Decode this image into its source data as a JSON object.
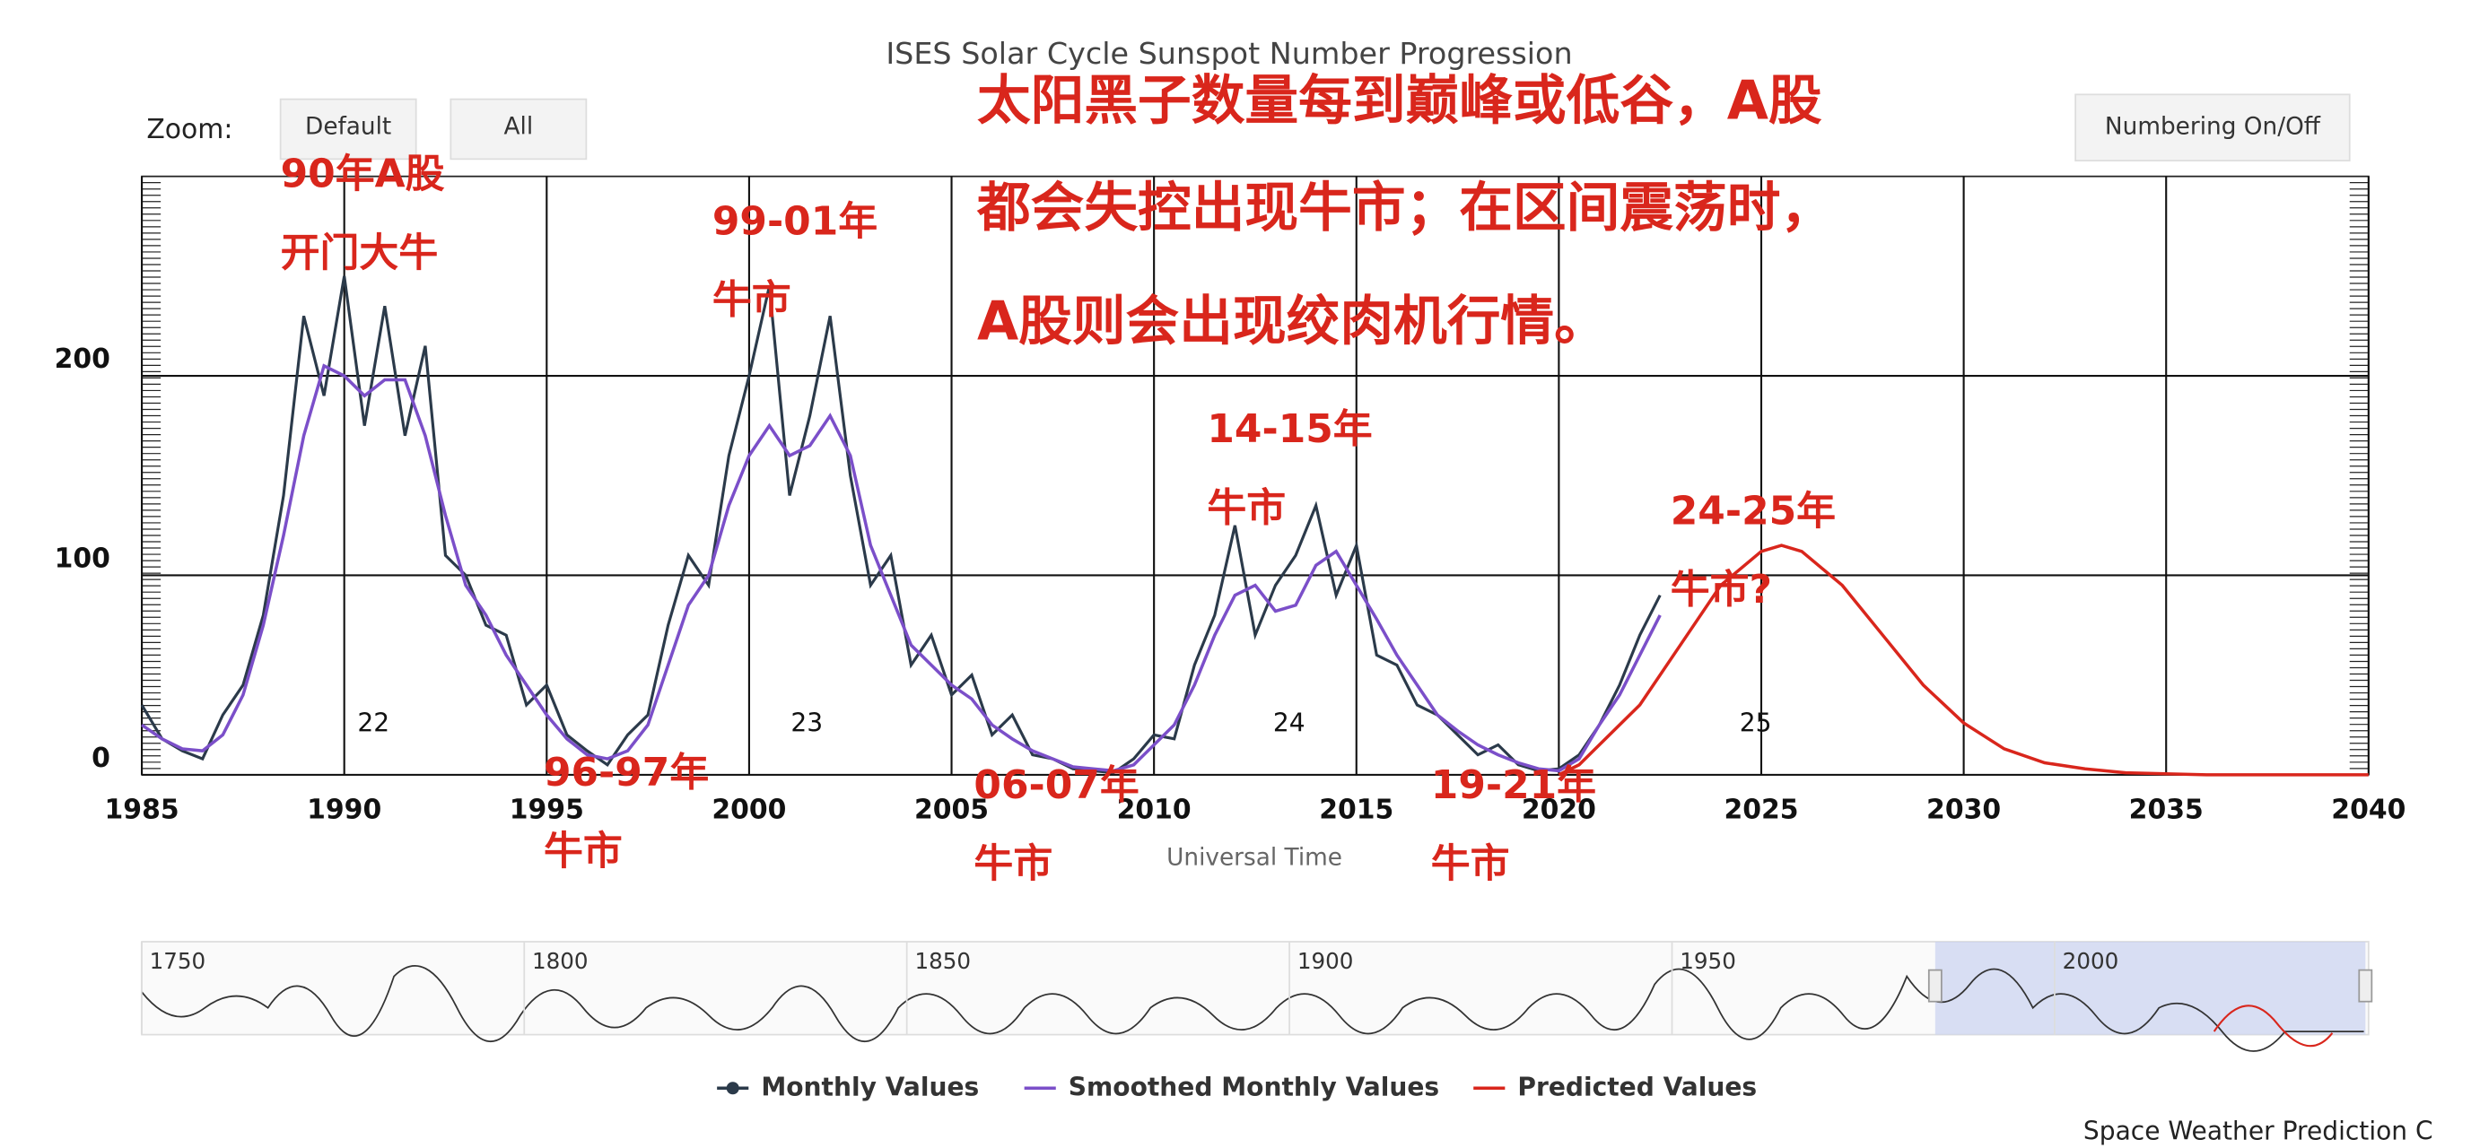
{
  "chart_data": {
    "type": "line",
    "title": "ISES Solar Cycle Sunspot Number Progression",
    "x_label": "Universal Time",
    "zoom_label": "Zoom:",
    "buttons": [
      "Default",
      "All",
      "Numbering On/Off"
    ],
    "credit": "Space Weather Prediction C",
    "xlim": [
      1985,
      2040
    ],
    "xticks": [
      1985,
      1990,
      1995,
      2000,
      2005,
      2010,
      2015,
      2020,
      2025,
      2030,
      2035,
      2040
    ],
    "ylim": [
      0,
      300
    ],
    "yticks": [
      0,
      100,
      200
    ],
    "grid": true,
    "cycle_labels": [
      "22",
      "23",
      "24",
      "25"
    ],
    "x": [
      1985,
      1985.5,
      1986,
      1986.5,
      1987,
      1987.5,
      1988,
      1988.5,
      1989,
      1989.5,
      1990,
      1990.5,
      1991,
      1991.5,
      1992,
      1992.5,
      1993,
      1993.5,
      1994,
      1994.5,
      1995,
      1995.5,
      1996,
      1996.5,
      1997,
      1997.5,
      1998,
      1998.5,
      1999,
      1999.5,
      2000,
      2000.5,
      2001,
      2001.5,
      2002,
      2002.5,
      2003,
      2003.5,
      2004,
      2004.5,
      2005,
      2005.5,
      2006,
      2006.5,
      2007,
      2007.5,
      2008,
      2008.5,
      2009,
      2009.5,
      2010,
      2010.5,
      2011,
      2011.5,
      2012,
      2012.5,
      2013,
      2013.5,
      2014,
      2014.5,
      2015,
      2015.5,
      2016,
      2016.5,
      2017,
      2017.5,
      2018,
      2018.5,
      2019,
      2019.5,
      2020,
      2020.5,
      2021,
      2021.5,
      2022,
      2022.5
    ],
    "series": [
      {
        "name": "Monthly Values",
        "color": "#2b3a4a",
        "values": [
          35,
          18,
          12,
          8,
          30,
          45,
          80,
          140,
          230,
          190,
          250,
          175,
          235,
          170,
          215,
          110,
          100,
          75,
          70,
          35,
          45,
          20,
          12,
          5,
          20,
          30,
          75,
          110,
          95,
          160,
          200,
          245,
          140,
          180,
          230,
          150,
          95,
          110,
          55,
          70,
          40,
          50,
          20,
          30,
          10,
          8,
          3,
          2,
          1,
          8,
          20,
          18,
          55,
          80,
          125,
          70,
          95,
          110,
          135,
          90,
          115,
          60,
          55,
          35,
          30,
          20,
          10,
          15,
          5,
          2,
          3,
          10,
          25,
          45,
          70,
          90
        ]
      },
      {
        "name": "Smoothed Monthly Values",
        "color": "#7b4fc9",
        "values": [
          25,
          18,
          13,
          12,
          20,
          40,
          75,
          120,
          170,
          205,
          200,
          190,
          198,
          198,
          170,
          130,
          95,
          80,
          60,
          45,
          30,
          18,
          10,
          8,
          12,
          25,
          55,
          85,
          100,
          135,
          160,
          175,
          160,
          165,
          180,
          160,
          115,
          90,
          65,
          55,
          45,
          38,
          25,
          18,
          12,
          8,
          4,
          3,
          2,
          5,
          15,
          25,
          45,
          70,
          90,
          95,
          82,
          85,
          105,
          112,
          95,
          78,
          60,
          45,
          30,
          22,
          15,
          10,
          6,
          3,
          2,
          8,
          25,
          40,
          60,
          80
        ]
      },
      {
        "name": "Predicted Values",
        "color": "#d9261c",
        "x": [
          2020,
          2020.5,
          2021,
          2022,
          2023,
          2024,
          2025,
          2025.5,
          2026,
          2027,
          2028,
          2029,
          2030,
          2031,
          2032,
          2033,
          2034,
          2036,
          2038,
          2040
        ],
        "values": [
          0,
          5,
          15,
          35,
          65,
          95,
          112,
          115,
          112,
          95,
          70,
          45,
          26,
          13,
          6,
          3,
          1,
          0,
          0,
          0
        ]
      }
    ],
    "navigator": {
      "xlim": [
        1749,
        2040
      ],
      "xticks": [
        1750,
        1800,
        1850,
        1900,
        1950,
        2000
      ]
    },
    "headline": [
      "太阳黑子数量每到巅峰或低谷，A股",
      "都会失控出现牛市；在区间震荡时，",
      "A股则会出现绞肉机行情。"
    ],
    "annotations": [
      [
        "90年A股",
        "开门大牛"
      ],
      [
        "99-01年",
        "牛市"
      ],
      [
        "14-15年",
        "牛市"
      ],
      [
        "24-25年",
        "牛市?"
      ],
      [
        "96-97年",
        "牛市"
      ],
      [
        "06-07年",
        "牛市"
      ],
      [
        "19-21年",
        "牛市"
      ]
    ]
  }
}
